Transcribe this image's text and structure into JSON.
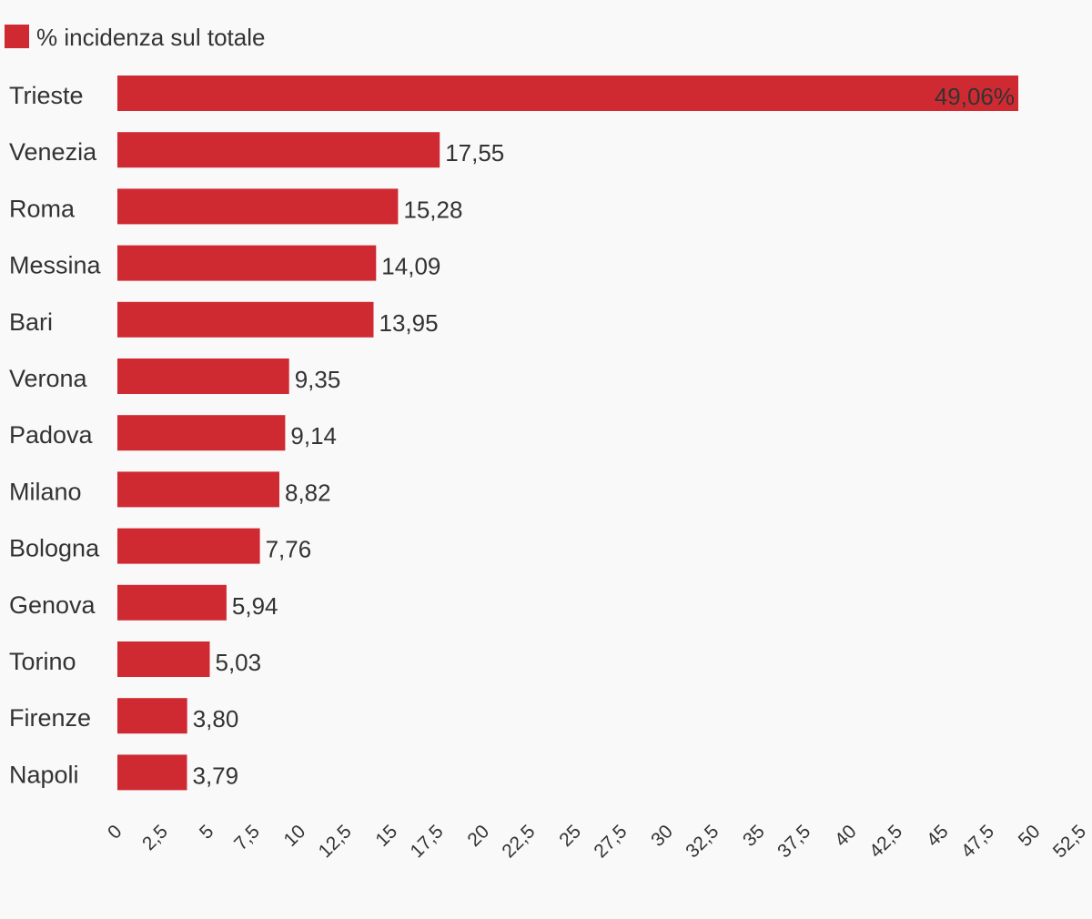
{
  "chart_data": {
    "type": "bar",
    "orientation": "horizontal",
    "legend": {
      "position": "top-left",
      "entries": [
        {
          "label": "% incidenza sul totale",
          "color": "#cf2a32"
        }
      ]
    },
    "series": [
      {
        "name": "% incidenza sul totale",
        "color": "#cf2a32",
        "values": [
          49.06,
          17.55,
          15.28,
          14.09,
          13.95,
          9.35,
          9.14,
          8.82,
          7.76,
          5.94,
          5.03,
          3.8,
          3.79
        ],
        "value_labels": [
          "49,06%",
          "17,55",
          "15,28",
          "14,09",
          "13,95",
          "9,35",
          "9,14",
          "8,82",
          "7,76",
          "5,94",
          "5,03",
          "3,80",
          "3,79"
        ]
      }
    ],
    "categories": [
      "Trieste",
      "Venezia",
      "Roma",
      "Messina",
      "Bari",
      "Verona",
      "Padova",
      "Milano",
      "Bologna",
      "Genova",
      "Torino",
      "Firenze",
      "Napoli"
    ],
    "xlim": [
      0,
      52.5
    ],
    "x_ticks": [
      0,
      2.5,
      5,
      7.5,
      10,
      12.5,
      15,
      17.5,
      20,
      22.5,
      25,
      27.5,
      30,
      32.5,
      35,
      37.5,
      40,
      42.5,
      45,
      47.5,
      50,
      52.5
    ],
    "x_tick_labels": [
      "0",
      "2,5",
      "5",
      "7,5",
      "10",
      "12,5",
      "15",
      "17,5",
      "20",
      "22,5",
      "25",
      "27,5",
      "30",
      "32,5",
      "35",
      "37,5",
      "40",
      "42,5",
      "45",
      "47,5",
      "50",
      "52,5"
    ],
    "grid": false,
    "title": "",
    "xlabel": "",
    "ylabel": ""
  }
}
